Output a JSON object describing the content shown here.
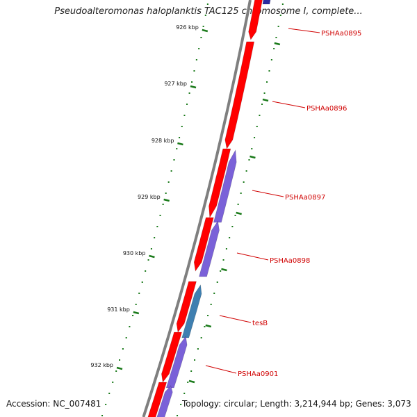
{
  "title": "Pseudoalteromonas haloplanktis TAC125 chromosome I, complete...",
  "footer": {
    "accession": "Accession: NC_007481",
    "topology": "Topology: circular; Length: 3,214,944 bp; Genes: 3,073"
  },
  "colors": {
    "forward_gene": "#ff0000",
    "reverse_gene": "#7a61d8",
    "tesB_gene": "#3f7fb0",
    "tick": "#1a7a1a",
    "backbone": "#7f7f7f",
    "label": "#d00000"
  },
  "scale_ticks": [
    {
      "label": "926 kbp"
    },
    {
      "label": "927 kbp"
    },
    {
      "label": "928 kbp"
    },
    {
      "label": "929 kbp"
    },
    {
      "label": "930 kbp"
    },
    {
      "label": "931 kbp"
    },
    {
      "label": "932 kbp"
    }
  ],
  "gene_labels": [
    {
      "text": "PSHAa0895"
    },
    {
      "text": "PSHAa0896"
    },
    {
      "text": "PSHAa0897"
    },
    {
      "text": "PSHAa0898"
    },
    {
      "text": "tesB"
    },
    {
      "text": "PSHAa0901"
    }
  ]
}
